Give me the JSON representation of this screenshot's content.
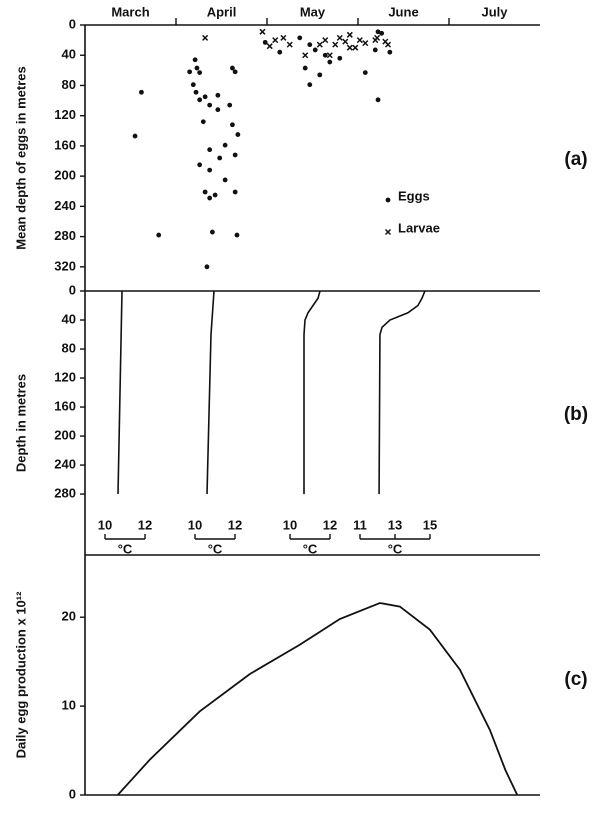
{
  "chart_data": [
    {
      "type": "scatter",
      "panel_label": "(a)",
      "ylabel": "Mean depth of eggs in metres",
      "xlim": [
        0,
        5
      ],
      "xticks": [
        {
          "value": 0.5,
          "label": "March"
        },
        {
          "value": 1.5,
          "label": "April"
        },
        {
          "value": 2.5,
          "label": "May"
        },
        {
          "value": 3.5,
          "label": "June"
        },
        {
          "value": 4.5,
          "label": "July"
        }
      ],
      "ylim": [
        0,
        352
      ],
      "y_reversed": true,
      "yticks": [
        0,
        40,
        80,
        120,
        160,
        200,
        240,
        280,
        320
      ],
      "legend": "right",
      "series": [
        {
          "name": "Eggs",
          "marker": "dot",
          "color": "#111111",
          "x": [
            0.62,
            0.55,
            0.81,
            1.15,
            1.21,
            1.23,
            1.26,
            1.19,
            1.22,
            1.32,
            1.37,
            1.26,
            1.46,
            1.62,
            1.65,
            1.59,
            1.3,
            1.46,
            1.62,
            1.54,
            1.68,
            1.37,
            1.26,
            1.37,
            1.48,
            1.65,
            1.32,
            1.43,
            1.54,
            1.37,
            1.65,
            1.4,
            1.67,
            1.34,
            1.98,
            2.14,
            2.36,
            2.47,
            2.53,
            2.42,
            2.47,
            2.58,
            2.64,
            2.69,
            2.8,
            3.22,
            3.35,
            3.08,
            3.22,
            3.26,
            3.19
          ],
          "values": [
            89,
            147,
            278,
            62,
            46,
            57,
            63,
            79,
            89,
            95,
            106,
            99,
            93,
            57,
            62,
            106,
            128,
            112,
            132,
            159,
            145,
            165,
            185,
            192,
            176,
            172,
            221,
            225,
            205,
            229,
            221,
            274,
            278,
            320,
            23,
            36,
            17,
            26,
            33,
            57,
            79,
            66,
            40,
            49,
            44,
            9,
            36,
            63,
            99,
            11,
            33
          ]
        },
        {
          "name": "Larvae",
          "marker": "x",
          "color": "#111111",
          "x": [
            1.32,
            1.95,
            2.03,
            2.09,
            2.18,
            2.25,
            2.42,
            2.58,
            2.64,
            2.75,
            2.8,
            2.91,
            2.86,
            2.91,
            2.69,
            2.97,
            3.02,
            3.08,
            3.19,
            3.3,
            3.33,
            3.21
          ],
          "values": [
            17,
            9,
            28,
            20,
            17,
            26,
            40,
            26,
            20,
            26,
            17,
            13,
            22,
            30,
            40,
            30,
            20,
            24,
            20,
            22,
            26,
            17
          ]
        }
      ]
    },
    {
      "type": "profile",
      "panel_label": "(b)",
      "ylabel": "Depth in metres",
      "ylim": [
        0,
        364
      ],
      "y_reversed": true,
      "yticks": [
        0,
        40,
        80,
        120,
        160,
        200,
        240,
        280
      ],
      "series": [
        {
          "color": "#111111",
          "xlabel": "°C",
          "xlim": [
            10,
            12
          ],
          "xticks": [
            10,
            12
          ],
          "x": [
            10.85,
            10.65
          ],
          "values": [
            0,
            280
          ]
        },
        {
          "color": "#111111",
          "xlabel": "°C",
          "xlim": [
            10,
            12
          ],
          "xticks": [
            10,
            12
          ],
          "x": [
            10.95,
            10.8,
            10.6
          ],
          "values": [
            0,
            60,
            280
          ]
        },
        {
          "color": "#111111",
          "xlabel": "°C",
          "xlim": [
            10,
            12
          ],
          "xticks": [
            10,
            12
          ],
          "x": [
            11.5,
            11.4,
            11.15,
            10.9,
            10.75,
            10.7,
            10.7
          ],
          "values": [
            0,
            10,
            20,
            30,
            40,
            60,
            280
          ]
        },
        {
          "color": "#111111",
          "xlabel": "°C",
          "xlim": [
            11,
            15
          ],
          "xticks": [
            11,
            13,
            15
          ],
          "x": [
            14.71,
            14.54,
            14.31,
            13.74,
            12.71,
            12.26,
            12.14,
            12.09
          ],
          "values": [
            0,
            10,
            20,
            30,
            40,
            50,
            60,
            280
          ]
        }
      ]
    },
    {
      "type": "line",
      "panel_label": "(c)",
      "ylabel": "Daily egg production x 10¹²",
      "xlim": [
        0,
        5
      ],
      "ylim": [
        0,
        27
      ],
      "yticks": [
        0,
        10,
        20
      ],
      "color": "#111111",
      "x": [
        0.36,
        0.71,
        1.26,
        1.81,
        2.36,
        2.8,
        3.24,
        3.46,
        3.79,
        4.12,
        4.45,
        4.62,
        4.75
      ],
      "values": [
        0,
        3.95,
        9.4,
        13.6,
        16.9,
        19.8,
        21.6,
        21.2,
        18.6,
        14.1,
        7.3,
        2.8,
        0
      ]
    }
  ]
}
